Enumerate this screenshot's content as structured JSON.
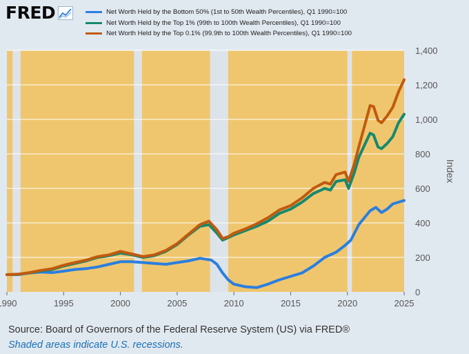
{
  "brand": {
    "logo_text": "FRED",
    "logo_icon": "fred-chart-icon"
  },
  "colors": {
    "plot_background": "#efc66e",
    "recession_shading": "#dde3ea",
    "page_background": "#e1e9f0"
  },
  "footer": {
    "source": "Source: Board of Governors of the Federal Reserve System (US) via FRED®",
    "note": "Shaded areas indicate U.S. recessions."
  },
  "chart_data": {
    "type": "line",
    "title": "",
    "xlabel": "",
    "ylabel": "Index",
    "xlim": [
      1990,
      2025
    ],
    "ylim": [
      0,
      1400
    ],
    "x_ticks": [
      "1990",
      "1995",
      "2000",
      "2005",
      "2010",
      "2015",
      "2020",
      "2025"
    ],
    "y_ticks": [
      "0",
      "200",
      "400",
      "600",
      "800",
      "1,000",
      "1,200",
      "1,400"
    ],
    "grid": "horizontal",
    "legend_position": "top",
    "recessions": [
      [
        1990.5,
        1991.2
      ],
      [
        2001.2,
        2001.9
      ],
      [
        2007.9,
        2009.5
      ],
      [
        2020.0,
        2020.4
      ]
    ],
    "series": [
      {
        "name": "Net Worth Held by the Bottom 50% (1st to 50th Wealth Percentiles), Q1 1990=100",
        "color": "#2a7ee0",
        "points": [
          [
            1990,
            100
          ],
          [
            1991,
            100
          ],
          [
            1992,
            110
          ],
          [
            1993,
            115
          ],
          [
            1994,
            112
          ],
          [
            1995,
            120
          ],
          [
            1996,
            130
          ],
          [
            1997,
            135
          ],
          [
            1998,
            145
          ],
          [
            1999,
            160
          ],
          [
            2000,
            175
          ],
          [
            2001,
            175
          ],
          [
            2002,
            170
          ],
          [
            2003,
            165
          ],
          [
            2004,
            160
          ],
          [
            2005,
            170
          ],
          [
            2006,
            180
          ],
          [
            2007,
            195
          ],
          [
            2008,
            185
          ],
          [
            2008.5,
            160
          ],
          [
            2009,
            110
          ],
          [
            2009.5,
            70
          ],
          [
            2010,
            45
          ],
          [
            2011,
            30
          ],
          [
            2012,
            25
          ],
          [
            2013,
            45
          ],
          [
            2014,
            70
          ],
          [
            2015,
            90
          ],
          [
            2016,
            110
          ],
          [
            2017,
            150
          ],
          [
            2018,
            200
          ],
          [
            2019,
            230
          ],
          [
            2019.8,
            270
          ],
          [
            2020.3,
            300
          ],
          [
            2021,
            390
          ],
          [
            2022,
            470
          ],
          [
            2022.5,
            490
          ],
          [
            2023,
            460
          ],
          [
            2023.5,
            480
          ],
          [
            2024,
            510
          ],
          [
            2024.5,
            520
          ],
          [
            2025,
            530
          ]
        ]
      },
      {
        "name": "Net Worth Held by the Top 1% (99th to 100th Wealth Percentiles), Q1 1990=100",
        "color": "#16896e",
        "points": [
          [
            1990,
            100
          ],
          [
            1991,
            102
          ],
          [
            1992,
            110
          ],
          [
            1993,
            122
          ],
          [
            1994,
            130
          ],
          [
            1995,
            150
          ],
          [
            1996,
            165
          ],
          [
            1997,
            180
          ],
          [
            1998,
            200
          ],
          [
            1999,
            210
          ],
          [
            2000,
            225
          ],
          [
            2001,
            215
          ],
          [
            2002,
            200
          ],
          [
            2003,
            210
          ],
          [
            2004,
            235
          ],
          [
            2005,
            275
          ],
          [
            2006,
            330
          ],
          [
            2007,
            380
          ],
          [
            2007.8,
            390
          ],
          [
            2008.5,
            340
          ],
          [
            2009,
            300
          ],
          [
            2009.5,
            315
          ],
          [
            2010,
            330
          ],
          [
            2011,
            355
          ],
          [
            2012,
            380
          ],
          [
            2013,
            410
          ],
          [
            2014,
            455
          ],
          [
            2015,
            480
          ],
          [
            2016,
            520
          ],
          [
            2017,
            570
          ],
          [
            2018,
            600
          ],
          [
            2018.5,
            590
          ],
          [
            2019,
            640
          ],
          [
            2019.8,
            650
          ],
          [
            2020.1,
            600
          ],
          [
            2020.6,
            690
          ],
          [
            2021,
            780
          ],
          [
            2021.5,
            850
          ],
          [
            2022,
            920
          ],
          [
            2022.3,
            910
          ],
          [
            2022.7,
            840
          ],
          [
            2023,
            830
          ],
          [
            2023.5,
            860
          ],
          [
            2024,
            900
          ],
          [
            2024.5,
            980
          ],
          [
            2025,
            1030
          ]
        ]
      },
      {
        "name": "Net Worth Held by the Top 0.1% (99.9th to 100th Wealth Percentiles), Q1 1990=100",
        "color": "#c15a0e",
        "points": [
          [
            1990,
            100
          ],
          [
            1991,
            103
          ],
          [
            1992,
            112
          ],
          [
            1993,
            125
          ],
          [
            1994,
            135
          ],
          [
            1995,
            155
          ],
          [
            1996,
            170
          ],
          [
            1997,
            185
          ],
          [
            1998,
            205
          ],
          [
            1999,
            215
          ],
          [
            2000,
            235
          ],
          [
            2001,
            220
          ],
          [
            2002,
            205
          ],
          [
            2003,
            215
          ],
          [
            2004,
            240
          ],
          [
            2005,
            280
          ],
          [
            2006,
            335
          ],
          [
            2007,
            390
          ],
          [
            2007.8,
            410
          ],
          [
            2008.5,
            360
          ],
          [
            2009,
            310
          ],
          [
            2009.5,
            320
          ],
          [
            2010,
            340
          ],
          [
            2011,
            365
          ],
          [
            2012,
            395
          ],
          [
            2013,
            430
          ],
          [
            2014,
            475
          ],
          [
            2015,
            500
          ],
          [
            2016,
            545
          ],
          [
            2017,
            600
          ],
          [
            2018,
            635
          ],
          [
            2018.5,
            625
          ],
          [
            2019,
            680
          ],
          [
            2019.8,
            695
          ],
          [
            2020.1,
            640
          ],
          [
            2020.6,
            740
          ],
          [
            2021,
            840
          ],
          [
            2021.5,
            960
          ],
          [
            2022,
            1080
          ],
          [
            2022.3,
            1075
          ],
          [
            2022.7,
            995
          ],
          [
            2023,
            980
          ],
          [
            2023.5,
            1020
          ],
          [
            2024,
            1070
          ],
          [
            2024.5,
            1160
          ],
          [
            2025,
            1230
          ]
        ]
      }
    ]
  }
}
